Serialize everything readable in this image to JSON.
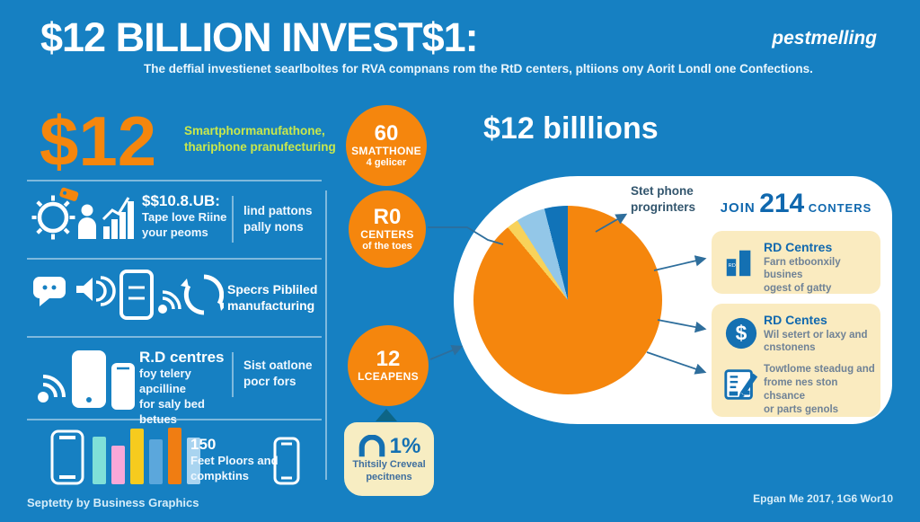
{
  "colors": {
    "background": "#1680C2",
    "accent_orange": "#F5860D",
    "accent_green": "#C9E84C",
    "cream": "#FAEBC0",
    "card_blue": "#1470B2",
    "connector": "#2E6E9C"
  },
  "header": {
    "title": "$12 BILLION INVEST$1:",
    "subtitle": "The deffial investienet searlboltes for RVA compnans rom the RtD centers, pltiions ony Aorit Londl one Confections.",
    "logo": "pestmelling"
  },
  "left": {
    "row1": {
      "value": "$12",
      "line1": "Smartphormanufathone,",
      "line2": "thariphone pranufecturing"
    },
    "row2": {
      "stat": "$$10.8.UB:",
      "desc1": "Tape love Riine",
      "desc2": "your peoms",
      "side1": "lind pattons",
      "side2": "pally nons"
    },
    "row3": {
      "text1": "Specrs Pibliled",
      "text2": "manufacturing"
    },
    "row4": {
      "title": "R.D centres",
      "desc1": "foy telery apcilline",
      "desc2": "for saly bed betues",
      "side1": "Sist oatlone",
      "side2": "pocr fors"
    },
    "row5": {
      "stat": "150",
      "desc1": "Feet Ploors and",
      "desc2": "compktins"
    },
    "credit": "Septetty by Business Graphics"
  },
  "middle": {
    "circles": [
      {
        "value": "60",
        "label": "SMATTHONE",
        "sub": "4 gelicer"
      },
      {
        "value": "R0",
        "label": "CENTERS",
        "sub": "of the toes"
      },
      {
        "value": "12",
        "label": "LCEAPENS",
        "sub": ""
      }
    ],
    "badge": {
      "value": "1%",
      "line1": "Thitsily Creveal",
      "line2": "pecitnens"
    }
  },
  "right": {
    "title": "$12 billlions",
    "callout_line1": "Stet phone",
    "callout_line2": "progrinters",
    "join": {
      "pre": "JOIN",
      "num": "214",
      "post": "CONTERS"
    },
    "cards": [
      {
        "title": "RD Centres",
        "body1": "Farn etboonxily busines",
        "body2": "ogest of gatty"
      },
      {
        "title": "RD Centes",
        "body1": "Wil setert or laxy and",
        "body2": "cnstonens"
      },
      {
        "body1": "Towtlome steadug and",
        "body2": "frome nes ston chsance",
        "body3": "or parts genols"
      }
    ],
    "bar_icon_text": "RD",
    "dollar_icon_text": "$"
  },
  "footer_right": "Epgan Me 2017, 1G6 Wor10",
  "chart_data": [
    {
      "type": "pie",
      "title": "$12 billlions",
      "slices": [
        {
          "label": "Stet phone progrinters",
          "value": 89,
          "color": "#F5860D"
        },
        {
          "label": "",
          "value": 2,
          "color": "#F8D25A"
        },
        {
          "label": "",
          "value": 5,
          "color": "#93C7E8"
        },
        {
          "label": "",
          "value": 4,
          "color": "#1173B8"
        }
      ],
      "start_angle_deg": 0,
      "legend": "none"
    },
    {
      "type": "bar",
      "title": "150 Feet Ploors and compktins",
      "categories": [
        "",
        "",
        "",
        "",
        "",
        ""
      ],
      "values": [
        53,
        43,
        62,
        50,
        63,
        52
      ],
      "colors": [
        "#7FE0D8",
        "#F8A8D8",
        "#F6CB1E",
        "#5BA7DC",
        "#F07D12",
        "#A9D4F0"
      ]
    }
  ]
}
